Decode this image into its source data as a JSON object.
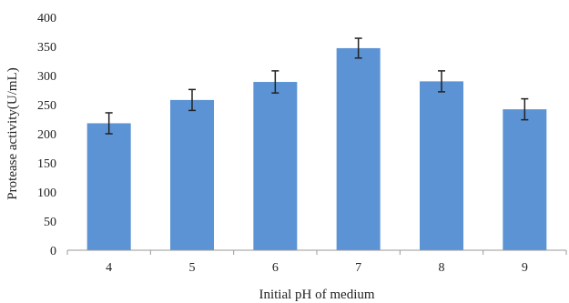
{
  "chart_data": {
    "type": "bar",
    "title": "",
    "xlabel": "Initial pH of medium",
    "ylabel": "Protease activity(U/mL)",
    "categories": [
      "4",
      "5",
      "6",
      "7",
      "8",
      "9"
    ],
    "values": [
      218,
      258,
      289,
      347,
      290,
      242
    ],
    "error": [
      18,
      18,
      19,
      17,
      18,
      18
    ],
    "ylim": [
      0,
      400
    ],
    "yticks": [
      0,
      50,
      100,
      150,
      200,
      250,
      300,
      350,
      400
    ],
    "grid": false,
    "legend": "none",
    "bar_color": "#5b93d4"
  }
}
